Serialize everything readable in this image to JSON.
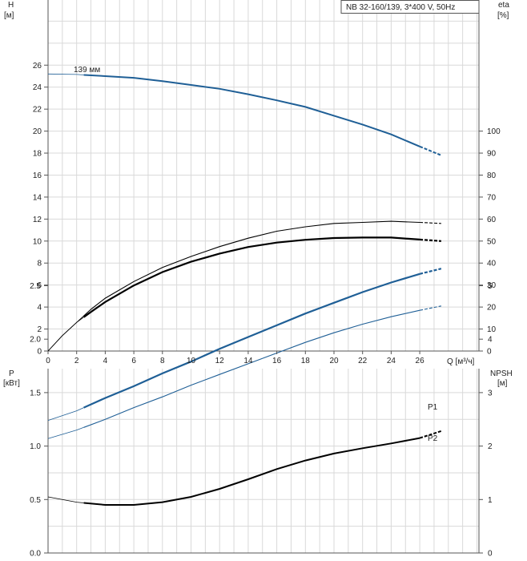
{
  "title": "NB 32-160/139, 3*400 V, 50Hz",
  "curve_label": "139 мм",
  "chart_data": [
    {
      "type": "line",
      "name": "head-efficiency",
      "xlabel": "Q [м³/ч]",
      "xlim": [
        0,
        28
      ],
      "x_ticks": [
        0,
        2,
        4,
        6,
        8,
        10,
        12,
        14,
        16,
        18,
        20,
        22,
        24,
        26
      ],
      "x_tick_labels": [
        "0",
        "2",
        "4",
        "6",
        "8",
        "10",
        "12",
        "14",
        "16",
        "18",
        "20",
        "22",
        "24",
        "26"
      ],
      "left_axis": {
        "label": "H",
        "unit": "[м]",
        "ylim": [
          0,
          28
        ],
        "ticks": [
          0,
          2,
          4,
          6,
          8,
          10,
          12,
          14,
          16,
          18,
          20,
          22,
          24,
          26
        ]
      },
      "right_axis": {
        "label": "eta",
        "unit": "[%]",
        "ylim": [
          0,
          140
        ],
        "ticks": [
          0,
          10,
          20,
          30,
          40,
          50,
          60,
          70,
          80,
          90,
          100
        ]
      },
      "grid": true,
      "series": [
        {
          "name": "139 мм",
          "axis": "left",
          "color": "#1f5f96",
          "points": [
            [
              0,
              25.2
            ],
            [
              2,
              25.15
            ],
            [
              4,
              25.0
            ],
            [
              6,
              24.85
            ],
            [
              8,
              24.55
            ],
            [
              10,
              24.2
            ],
            [
              12,
              23.85
            ],
            [
              14,
              23.35
            ],
            [
              16,
              22.8
            ],
            [
              18,
              22.2
            ],
            [
              20,
              21.4
            ],
            [
              22,
              20.6
            ],
            [
              24,
              19.7
            ],
            [
              26,
              18.6
            ],
            [
              27.5,
              17.8
            ]
          ]
        },
        {
          "axis": "right",
          "color": "#000000",
          "points": [
            [
              0,
              0
            ],
            [
              1,
              7
            ],
            [
              2,
              13
            ],
            [
              3,
              17.8
            ],
            [
              4,
              22.3
            ],
            [
              6,
              29.8
            ],
            [
              8,
              35.9
            ],
            [
              10,
              40.6
            ],
            [
              12,
              44.3
            ],
            [
              14,
              47.3
            ],
            [
              16,
              49.3
            ],
            [
              18,
              50.6
            ],
            [
              20,
              51.4
            ],
            [
              22,
              51.6
            ],
            [
              24,
              51.6
            ],
            [
              26,
              50.7
            ],
            [
              27.5,
              50.0
            ]
          ]
        },
        {
          "axis": "right",
          "color": "#000000",
          "points": [
            [
              0,
              0
            ],
            [
              1,
              7
            ],
            [
              2,
              13
            ],
            [
              3,
              19
            ],
            [
              4,
              24
            ],
            [
              6,
              31.6
            ],
            [
              8,
              38
            ],
            [
              10,
              43
            ],
            [
              12,
              47.5
            ],
            [
              14,
              51.3
            ],
            [
              16,
              54.5
            ],
            [
              18,
              56.5
            ],
            [
              20,
              58
            ],
            [
              22,
              58.5
            ],
            [
              24,
              59
            ],
            [
              26,
              58.5
            ],
            [
              27.5,
              58
            ]
          ]
        }
      ]
    },
    {
      "type": "line",
      "name": "power-npsh",
      "xlim": [
        0,
        28
      ],
      "left_axis": {
        "label": "P",
        "unit": "[кВт]",
        "ylim": [
          0,
          3.0
        ],
        "ticks": [
          0.0,
          0.5,
          1.0,
          1.5,
          2.0,
          2.5
        ],
        "tick_labels": [
          "0.0",
          "0.5",
          "1.0",
          "1.5",
          "2.0",
          "2.5"
        ]
      },
      "right_axis": {
        "label": "NPSH",
        "unit": "[м]",
        "ylim": [
          0,
          6
        ],
        "ticks": [
          0,
          1,
          2,
          3,
          4,
          5
        ]
      },
      "grid": true,
      "series": [
        {
          "name": "P1",
          "axis": "left",
          "color": "#1f5f96",
          "points": [
            [
              0,
              1.24
            ],
            [
              2,
              1.33
            ],
            [
              4,
              1.45
            ],
            [
              6,
              1.56
            ],
            [
              8,
              1.68
            ],
            [
              10,
              1.79
            ],
            [
              12,
              1.91
            ],
            [
              14,
              2.02
            ],
            [
              16,
              2.13
            ],
            [
              18,
              2.24
            ],
            [
              20,
              2.34
            ],
            [
              22,
              2.44
            ],
            [
              24,
              2.53
            ],
            [
              26,
              2.61
            ],
            [
              27.5,
              2.66
            ]
          ]
        },
        {
          "name": "P2",
          "axis": "left",
          "color": "#1f5f96",
          "points": [
            [
              0,
              1.07
            ],
            [
              2,
              1.15
            ],
            [
              4,
              1.25
            ],
            [
              6,
              1.36
            ],
            [
              8,
              1.46
            ],
            [
              10,
              1.57
            ],
            [
              12,
              1.67
            ],
            [
              14,
              1.77
            ],
            [
              16,
              1.87
            ],
            [
              18,
              1.97
            ],
            [
              20,
              2.06
            ],
            [
              22,
              2.14
            ],
            [
              24,
              2.21
            ],
            [
              26,
              2.27
            ],
            [
              27.5,
              2.31
            ]
          ]
        },
        {
          "axis": "right",
          "color": "#000000",
          "points": [
            [
              0,
              1.05
            ],
            [
              2,
              0.95
            ],
            [
              4,
              0.9
            ],
            [
              6,
              0.9
            ],
            [
              8,
              0.95
            ],
            [
              10,
              1.05
            ],
            [
              12,
              1.2
            ],
            [
              14,
              1.38
            ],
            [
              16,
              1.57
            ],
            [
              18,
              1.73
            ],
            [
              20,
              1.86
            ],
            [
              22,
              1.96
            ],
            [
              24,
              2.05
            ],
            [
              26,
              2.15
            ],
            [
              27.5,
              2.28
            ]
          ]
        }
      ]
    }
  ]
}
